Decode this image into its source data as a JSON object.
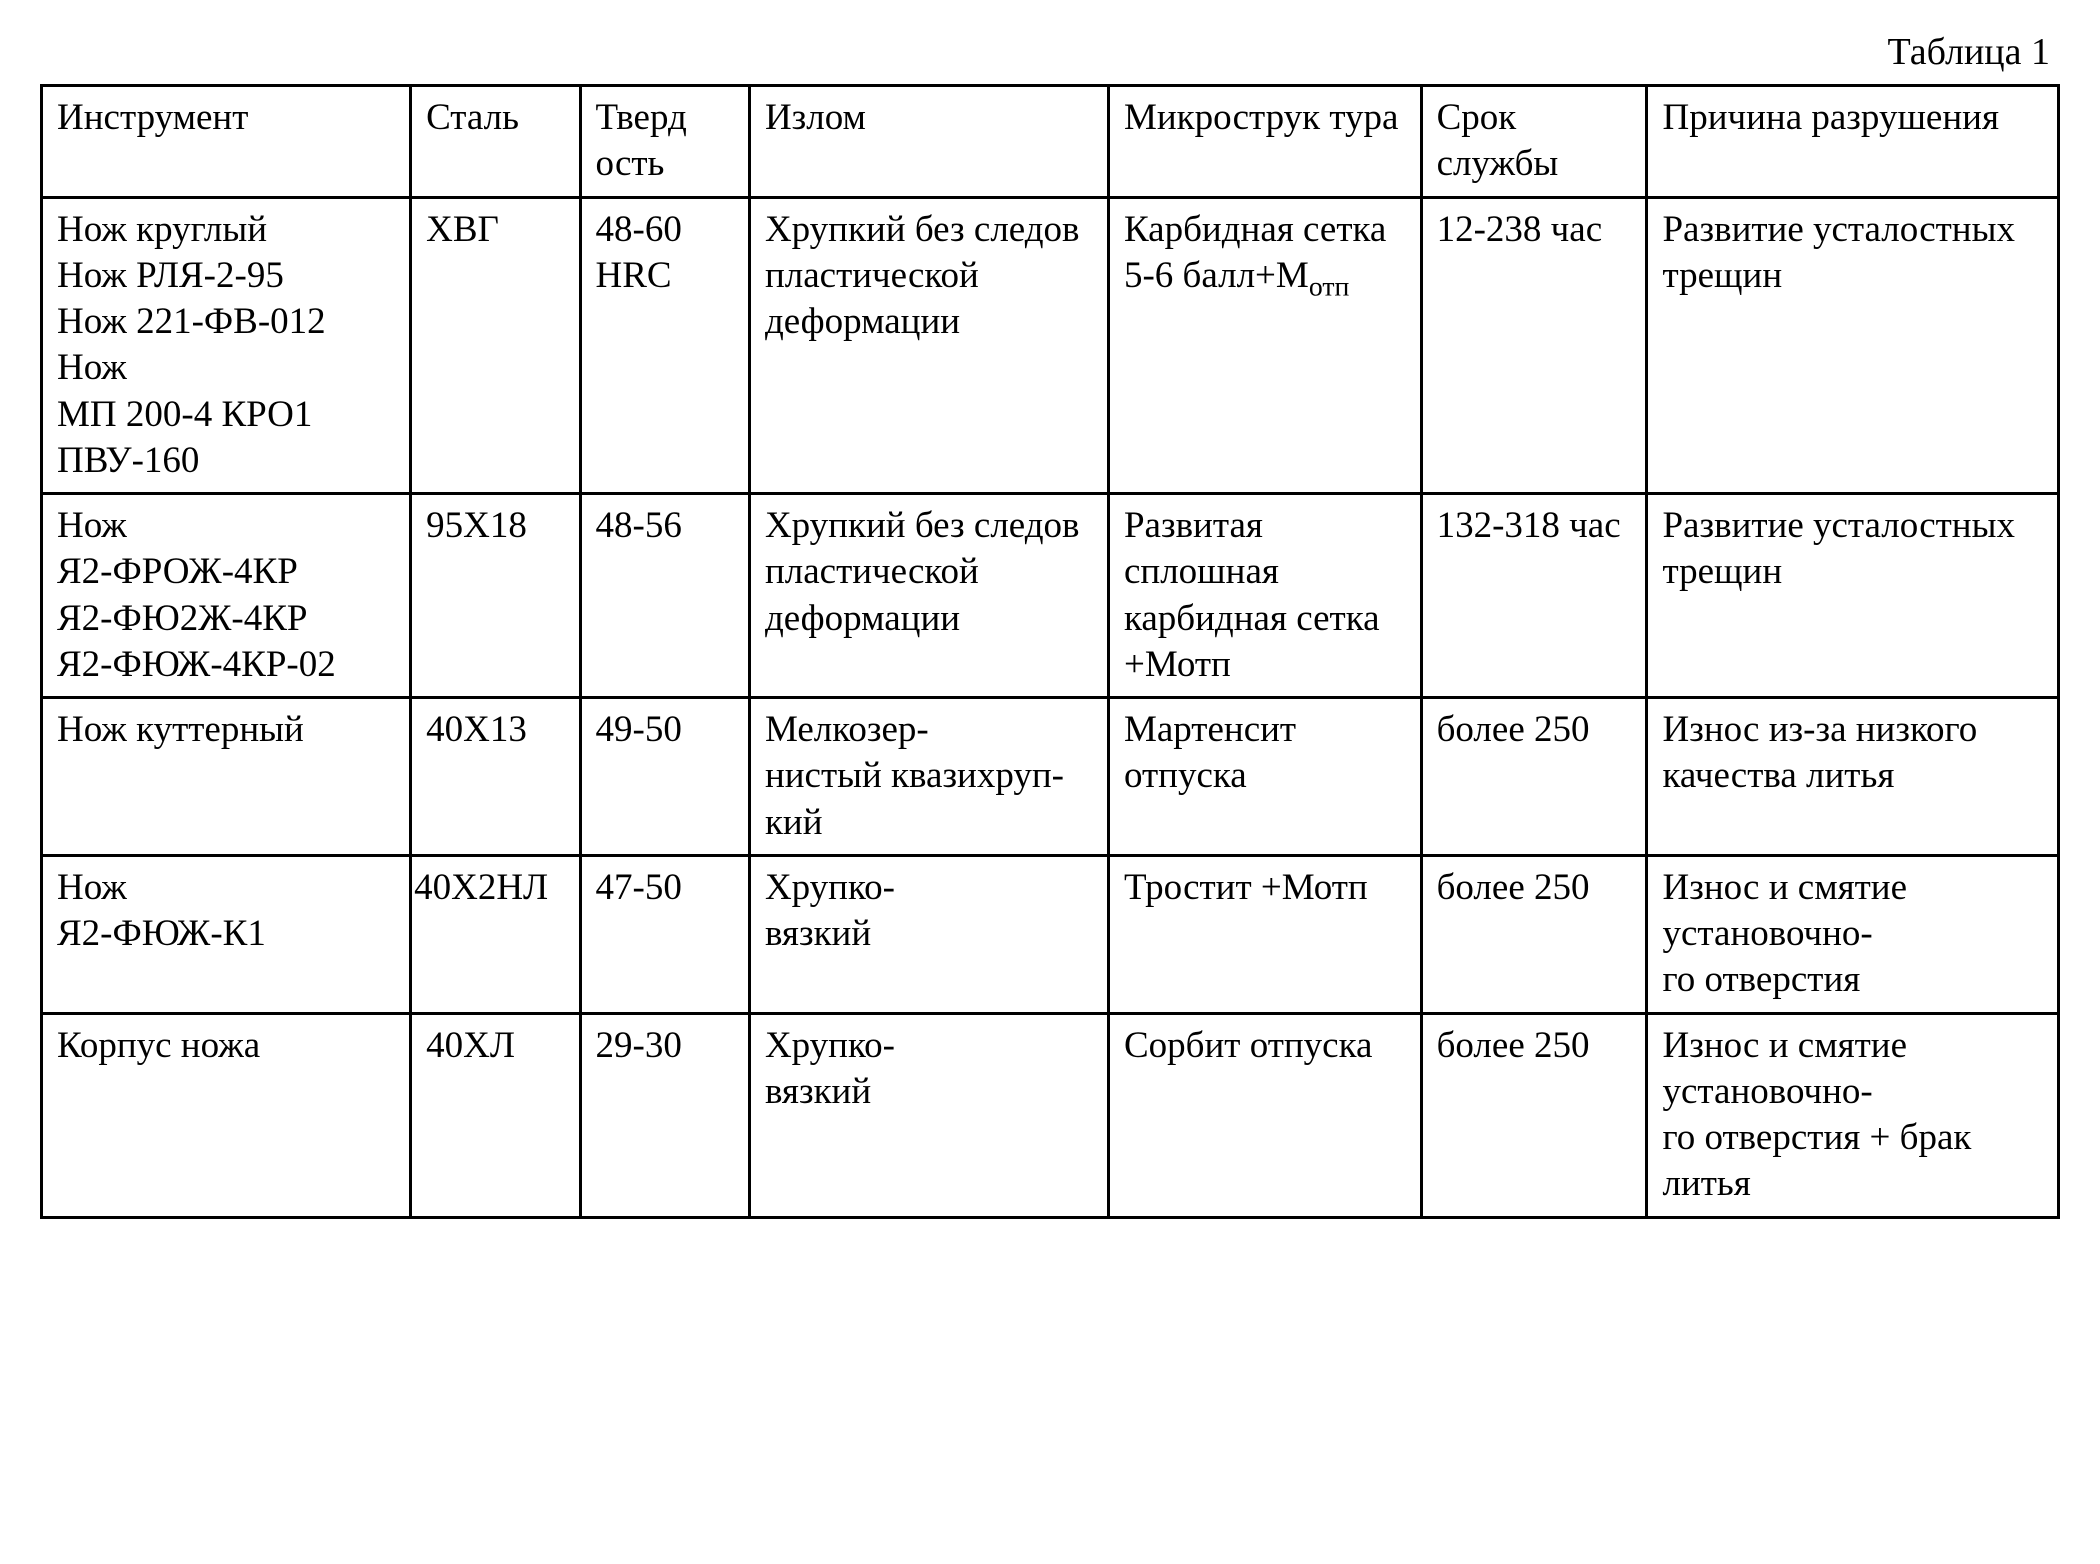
{
  "caption": "Таблица 1",
  "table": {
    "background_color": "#ffffff",
    "border_color": "#000000",
    "text_color": "#000000",
    "font_family": "Times New Roman",
    "header_fontsize": 37,
    "cell_fontsize": 37,
    "caption_fontsize": 38,
    "border_width": 3,
    "column_widths_pct": [
      18.3,
      8.4,
      8.4,
      17.8,
      15.5,
      11.2,
      20.4
    ],
    "columns": [
      "Инструмент",
      "Сталь",
      "Тверд ость",
      "Излом",
      "Микрострук тура",
      "Срок службы",
      "Причина разрушения"
    ],
    "rows": [
      [
        "Нож круглый\nНож РЛЯ-2-95\nНож 221-ФВ-012\nНож\nМП 200-4 КРО1\nПВУ-160",
        "ХВГ",
        "48-60 HRC",
        "Хрупкий без следов пластической деформации",
        "Карбидная сетка 5-6 балл+М<sub>отп</sub>",
        "12-238 час",
        "Развитие усталостных трещин"
      ],
      [
        "Нож\nЯ2-ФРОЖ-4КР\nЯ2-ФЮ2Ж-4КР\nЯ2-ФЮЖ-4КР-02",
        "95Х18",
        "48-56",
        "Хрупкий без следов пластической деформации",
        "Развитая сплошная карбидная сетка +Мотп",
        "132-318 час",
        "Развитие усталостных трещин"
      ],
      [
        "Нож куттерный",
        "40Х13",
        "49-50",
        "Мелкозер-\nнистый квазихруп-\nкий",
        "Мартенсит отпуска",
        "более 250",
        "Износ из-за низкого качества литья"
      ],
      [
        "Нож\nЯ2-ФЮЖ-К1",
        "40Х2НЛ",
        "47-50",
        "Хрупко-\nвязкий",
        "Тростит +Мотп",
        "более 250",
        "Износ и смятие установочно-\nго отверстия"
      ],
      [
        "Корпус ножа",
        "40ХЛ",
        "29-30",
        "Хрупко-\nвязкий",
        "Сорбит отпуска",
        "более 250",
        "Износ и смятие установочно-\nго отверстия + брак литья"
      ]
    ],
    "tight_cells": [
      {
        "row": 3,
        "col": 1
      }
    ]
  }
}
